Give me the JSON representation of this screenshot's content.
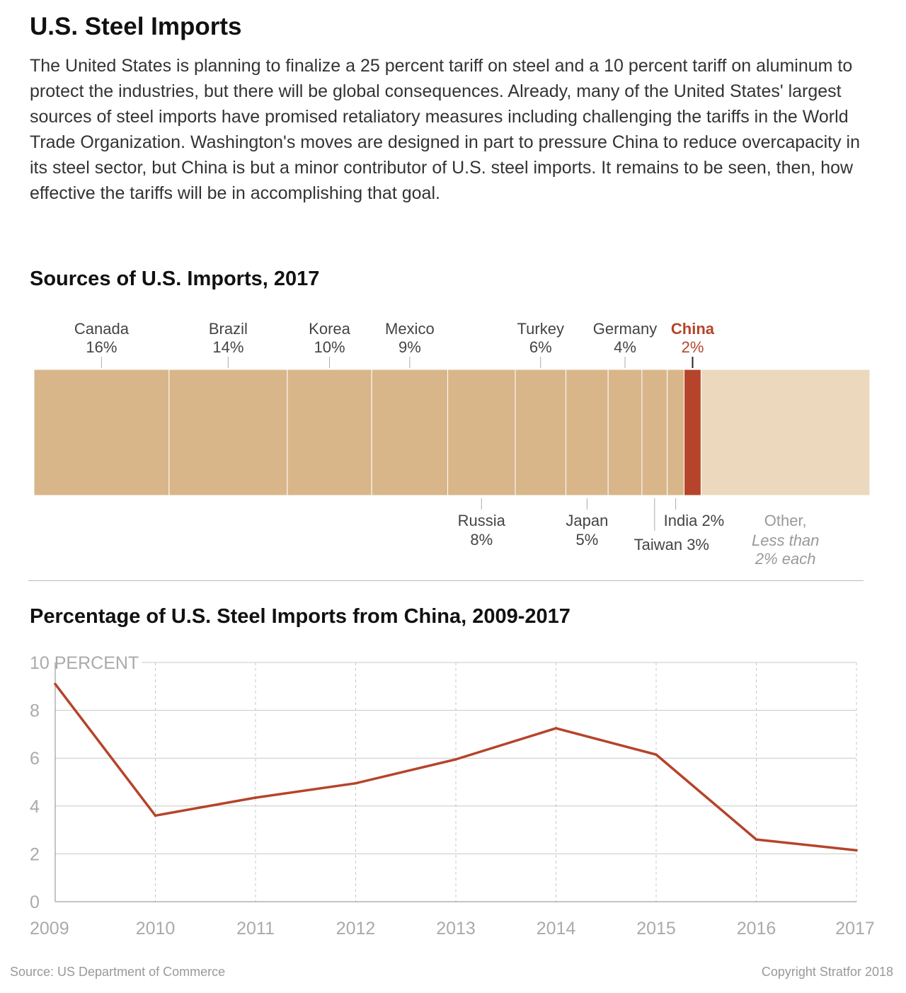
{
  "header": {
    "title": "U.S. Steel Imports",
    "description": "The United States is planning to finalize a 25 percent tariff on steel and a 10 percent tariff on aluminum to protect the industries, but there will be global consequences. Already, many of the United States' largest sources of steel imports have promised retaliatory measures including challenging the tariffs in the World Trade Organization. Washington's moves are designed in part to pressure China to reduce overcapacity in its steel sector, but China is but a minor contributor of U.S. steel imports. It remains to be seen, then, how effective the tariffs will be in accomplishing that goal."
  },
  "colors": {
    "segment": "#d8b68a",
    "highlight": "#b5442a",
    "other": "#ecd9bd",
    "line": "#b5442a",
    "grid": "#c8c8c8",
    "axis_text": "#aaaaaa"
  },
  "chart_data": [
    {
      "type": "bar",
      "title": "Sources of U.S. Imports, 2017",
      "stacked": true,
      "unit": "%",
      "categories": [
        "Canada",
        "Brazil",
        "Korea",
        "Mexico",
        "Russia",
        "Turkey",
        "Japan",
        "Germany",
        "Taiwan",
        "India",
        "China",
        "Other"
      ],
      "values": [
        16,
        14,
        10,
        9,
        8,
        6,
        5,
        4,
        3,
        2,
        2,
        20
      ],
      "labels": [
        {
          "name": "Canada",
          "value": "16%",
          "position": "top"
        },
        {
          "name": "Brazil",
          "value": "14%",
          "position": "top"
        },
        {
          "name": "Korea",
          "value": "10%",
          "position": "top"
        },
        {
          "name": "Mexico",
          "value": "9%",
          "position": "top"
        },
        {
          "name": "Russia",
          "value": "8%",
          "position": "bottom"
        },
        {
          "name": "Turkey",
          "value": "6%",
          "position": "top"
        },
        {
          "name": "Japan",
          "value": "5%",
          "position": "bottom"
        },
        {
          "name": "Germany",
          "value": "4%",
          "position": "top"
        },
        {
          "name": "Taiwan",
          "value": "3%",
          "position": "bottom"
        },
        {
          "name": "India",
          "value": "2%",
          "position": "bottom"
        },
        {
          "name": "China",
          "value": "2%",
          "position": "top"
        },
        {
          "name": "Other,",
          "value": "Less than 2% each",
          "position": "bottom"
        }
      ],
      "highlight": "China",
      "other_note_lines": [
        "Less than",
        "2% each"
      ]
    },
    {
      "type": "line",
      "title": "Percentage of U.S. Steel Imports from China, 2009-2017",
      "x": [
        2009,
        2010,
        2011,
        2012,
        2013,
        2014,
        2015,
        2016,
        2017
      ],
      "y": [
        9.1,
        3.6,
        4.35,
        4.95,
        5.95,
        7.25,
        6.15,
        2.6,
        2.15
      ],
      "ylim": [
        0,
        10
      ],
      "yticks": [
        0,
        2,
        4,
        6,
        8,
        10
      ],
      "ytick_labels": [
        "0",
        "2",
        "4",
        "6",
        "8",
        "10 PERCENT"
      ],
      "grid": true
    }
  ],
  "footer": {
    "source": "Source: US Department of Commerce",
    "copyright": "Copyright Stratfor 2018"
  }
}
